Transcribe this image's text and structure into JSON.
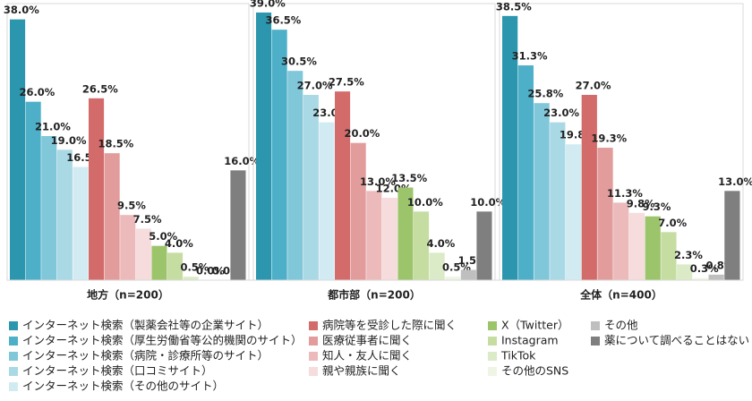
{
  "chart_data": {
    "type": "bar",
    "categories": [
      "地方（n=200）",
      "都市部（n=200）",
      "全体（n=400）"
    ],
    "series": [
      {
        "name": "インターネット検索（製薬会社等の企業サイト）",
        "color": "#2b96ad",
        "values": [
          38.0,
          39.0,
          38.5
        ],
        "value_labels": [
          "38.0%",
          "39.0%",
          "38.5%"
        ]
      },
      {
        "name": "インターネット検索（厚生労働省等公的機関のサイト）",
        "color": "#4eb0c8",
        "values": [
          26.0,
          36.5,
          31.3
        ],
        "value_labels": [
          "26.0%",
          "36.5%",
          "31.3%"
        ]
      },
      {
        "name": "インターネット検索（病院・診療所等のサイト）",
        "color": "#80c7da",
        "values": [
          21.0,
          30.5,
          25.8
        ],
        "value_labels": [
          "21.0%",
          "30.5%",
          "25.8%"
        ]
      },
      {
        "name": "インターネット検索（口コミサイト）",
        "color": "#aad9e6",
        "values": [
          19.0,
          27.0,
          23.0
        ],
        "value_labels": [
          "19.0%",
          "27.0%",
          "23.0%"
        ]
      },
      {
        "name": "インターネット検索（その他のサイト）",
        "color": "#d2ebf2",
        "values": [
          16.5,
          23.0,
          19.8
        ],
        "value_labels": [
          "16.5%",
          "23.0%",
          "19.8%"
        ]
      },
      {
        "name": "病院等を受診した際に聞く",
        "color": "#d46b6b",
        "values": [
          26.5,
          27.5,
          27.0
        ],
        "value_labels": [
          "26.5%",
          "27.5%",
          "27.0%"
        ]
      },
      {
        "name": "医療従事者に聞く",
        "color": "#e39c9c",
        "values": [
          18.5,
          20.0,
          19.3
        ],
        "value_labels": [
          "18.5%",
          "20.0%",
          "19.3%"
        ]
      },
      {
        "name": "知人・友人に聞く",
        "color": "#ecbaba",
        "values": [
          9.5,
          13.0,
          11.3
        ],
        "value_labels": [
          "9.5%",
          "13.0%",
          "11.3%"
        ]
      },
      {
        "name": "親や親族に聞く",
        "color": "#f6dcdc",
        "values": [
          7.5,
          12.0,
          9.8
        ],
        "value_labels": [
          "7.5%",
          "12.0%",
          "9.8%"
        ]
      },
      {
        "name": "X（Twitter）",
        "color": "#9cc46b",
        "values": [
          5.0,
          13.5,
          9.3
        ],
        "value_labels": [
          "5.0%",
          "13.5%",
          "9.3%"
        ]
      },
      {
        "name": "Instagram",
        "color": "#c6dda2",
        "values": [
          4.0,
          10.0,
          7.0
        ],
        "value_labels": [
          "4.0%",
          "10.0%",
          "7.0%"
        ]
      },
      {
        "name": "TikTok",
        "color": "#dcebc7",
        "values": [
          0.5,
          4.0,
          2.3
        ],
        "value_labels": [
          "0.5%",
          "4.0%",
          "2.3%"
        ]
      },
      {
        "name": "その他のSNS",
        "color": "#eef5e4",
        "values": [
          0.0,
          0.5,
          0.3
        ],
        "value_labels": [
          "0.0%",
          "0.5%",
          "0.3%"
        ]
      },
      {
        "name": "その他",
        "color": "#bfbfbf",
        "values": [
          0.0,
          1.5,
          0.8
        ],
        "value_labels": [
          "0.0%",
          "1.5%",
          "0.8%"
        ]
      },
      {
        "name": "薬について調べることはない",
        "color": "#7f7f7f",
        "values": [
          16.0,
          10.0,
          13.0
        ],
        "value_labels": [
          "16.0%",
          "10.0%",
          "13.0%"
        ]
      }
    ]
  }
}
